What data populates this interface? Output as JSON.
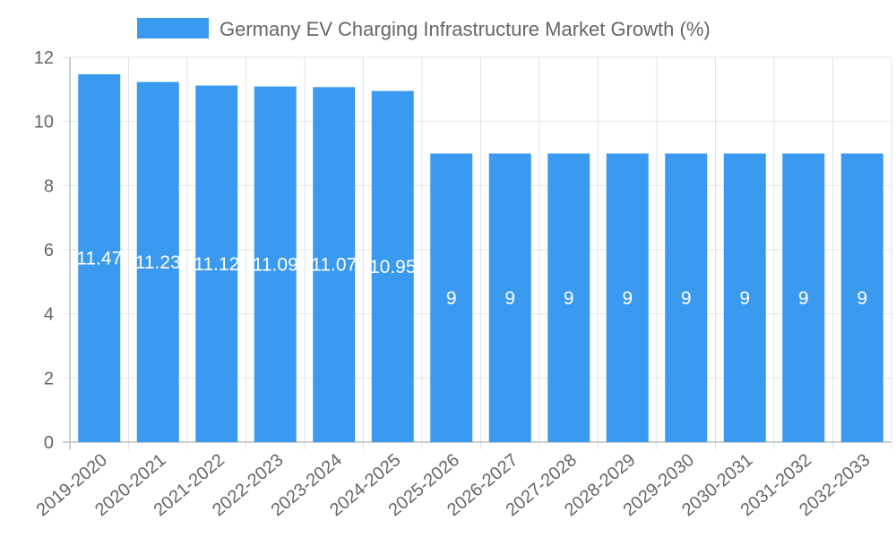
{
  "chart_data": {
    "type": "bar",
    "title": "",
    "xlabel": "",
    "ylabel": "",
    "ylim": [
      0,
      12
    ],
    "y_ticks": [
      "0",
      "2",
      "4",
      "6",
      "8",
      "10",
      "12"
    ],
    "grid": true,
    "legend_position": "top-center",
    "categories": [
      "2019-2020",
      "2020-2021",
      "2021-2022",
      "2022-2023",
      "2023-2024",
      "2024-2025",
      "2025-2026",
      "2026-2027",
      "2027-2028",
      "2028-2029",
      "2029-2030",
      "2030-2031",
      "2031-2032",
      "2032-2033"
    ],
    "series": [
      {
        "name": "Germany EV Charging Infrastructure Market Growth (%)",
        "color": "#3a9af0",
        "values": [
          11.47,
          11.23,
          11.12,
          11.09,
          11.07,
          10.95,
          9,
          9,
          9,
          9,
          9,
          9,
          9,
          9
        ],
        "labels": [
          "11.47",
          "11.23",
          "11.12",
          "11.09",
          "11.07",
          "10.95",
          "9",
          "9",
          "9",
          "9",
          "9",
          "9",
          "9",
          "9"
        ]
      }
    ],
    "colors": {
      "grid": "#e3e3e3",
      "axis": "#bdbdbd",
      "text": "#666666",
      "label": "#ffffff"
    }
  }
}
